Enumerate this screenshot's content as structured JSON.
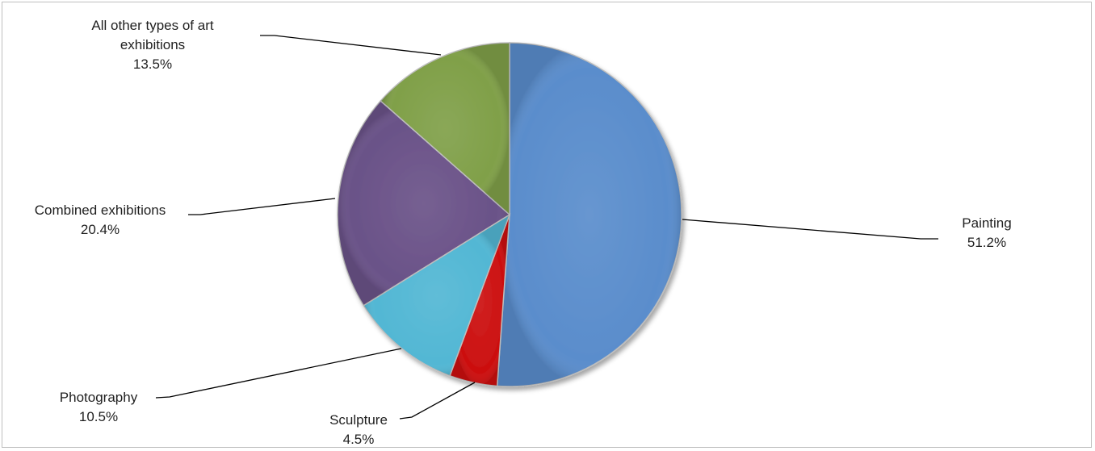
{
  "chart_data": {
    "type": "pie",
    "title": "",
    "start_angle_deg": 0,
    "direction": "clockwise",
    "slices": [
      {
        "label": "Painting",
        "value": 51.2,
        "value_label": "51.2%",
        "color": "#5a8dcc"
      },
      {
        "label": "Sculpture",
        "value": 4.5,
        "value_label": "4.5%",
        "color": "#cc1010"
      },
      {
        "label": "Photography",
        "value": 10.5,
        "value_label": "10.5%",
        "color": "#52b7d4"
      },
      {
        "label": "Combined exhibitions",
        "value": 20.4,
        "value_label": "20.4%",
        "color": "#6a5288"
      },
      {
        "label_lines": [
          "All other types of art",
          "exhibitions"
        ],
        "value": 13.5,
        "value_label": "13.5%",
        "color": "#80a049"
      }
    ],
    "legend": "none",
    "data_labels": "outside with leader lines"
  }
}
